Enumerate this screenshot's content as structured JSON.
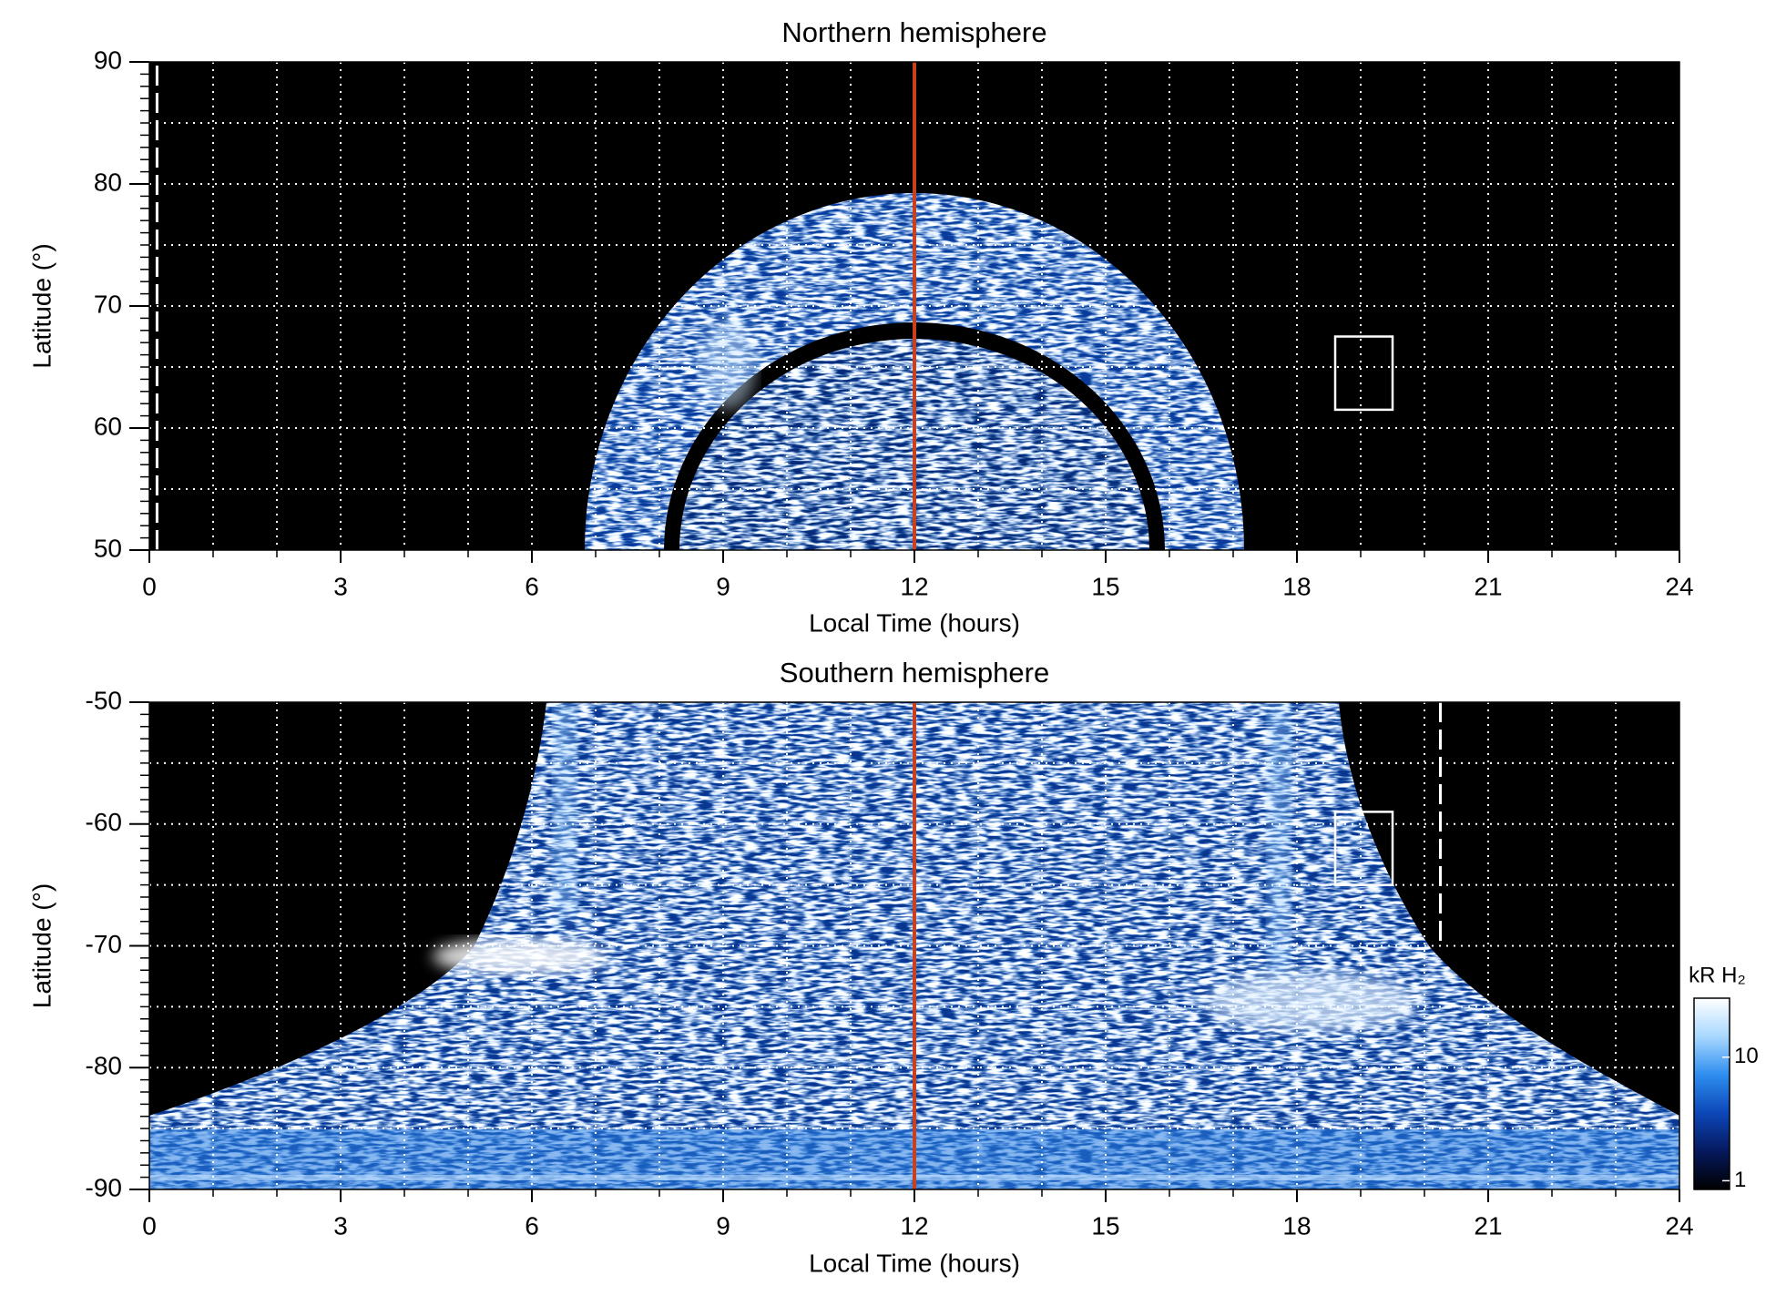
{
  "chart_data": [
    {
      "type": "image",
      "title": "Northern hemisphere",
      "x_label": "Local Time (hours)",
      "y_label": "Latitude (°)",
      "xlim": [
        0,
        24
      ],
      "ylim": [
        50,
        90
      ],
      "xticks": [
        0,
        3,
        6,
        9,
        12,
        15,
        18,
        21,
        24
      ],
      "yticks": [
        50,
        60,
        70,
        80,
        90
      ],
      "xminorticks": [
        0,
        1,
        2,
        3,
        4,
        5,
        6,
        7,
        8,
        9,
        10,
        11,
        12,
        13,
        14,
        15,
        16,
        17,
        18,
        19,
        20,
        21,
        22,
        23,
        24
      ],
      "yminorticks": [
        50,
        51,
        52,
        53,
        54,
        55,
        56,
        57,
        58,
        59,
        60,
        61,
        62,
        63,
        64,
        65,
        66,
        67,
        68,
        69,
        70,
        71,
        72,
        73,
        74,
        75,
        76,
        77,
        78,
        79,
        80,
        81,
        82,
        83,
        84,
        85,
        86,
        87,
        88,
        89,
        90
      ],
      "grid": true,
      "grid_x": [
        1,
        2,
        3,
        4,
        5,
        6,
        7,
        8,
        9,
        10,
        11,
        12,
        13,
        14,
        15,
        16,
        17,
        18,
        19,
        20,
        21,
        22,
        23
      ],
      "grid_y": [
        55,
        60,
        65,
        70,
        75,
        80,
        85
      ],
      "marker_line": {
        "x": 12,
        "color": "#c8401e"
      },
      "box": {
        "x": [
          18.6,
          19.5
        ],
        "y": [
          61.5,
          67.5
        ]
      },
      "dashed_line": {
        "x": 0.12,
        "y": [
          50,
          90
        ]
      }
    },
    {
      "type": "image",
      "title": "Southern hemisphere",
      "x_label": "Local Time (hours)",
      "y_label": "Latitude (°)",
      "xlim": [
        0,
        24
      ],
      "ylim": [
        -90,
        -50
      ],
      "xticks": [
        0,
        3,
        6,
        9,
        12,
        15,
        18,
        21,
        24
      ],
      "yticks": [
        -90,
        -80,
        -70,
        -60,
        -50
      ],
      "xminorticks": [
        0,
        1,
        2,
        3,
        4,
        5,
        6,
        7,
        8,
        9,
        10,
        11,
        12,
        13,
        14,
        15,
        16,
        17,
        18,
        19,
        20,
        21,
        22,
        23,
        24
      ],
      "yminorticks": [
        -90,
        -89,
        -88,
        -87,
        -86,
        -85,
        -84,
        -83,
        -82,
        -81,
        -80,
        -79,
        -78,
        -77,
        -76,
        -75,
        -74,
        -73,
        -72,
        -71,
        -70,
        -69,
        -68,
        -67,
        -66,
        -65,
        -64,
        -63,
        -62,
        -61,
        -60,
        -59,
        -58,
        -57,
        -56,
        -55,
        -54,
        -53,
        -52,
        -51,
        -50
      ],
      "grid": true,
      "grid_x": [
        1,
        2,
        3,
        4,
        5,
        6,
        7,
        8,
        9,
        10,
        11,
        12,
        13,
        14,
        15,
        16,
        17,
        18,
        19,
        20,
        21,
        22,
        23
      ],
      "grid_y": [
        -85,
        -80,
        -75,
        -70,
        -65,
        -60,
        -55
      ],
      "marker_line": {
        "x": 12,
        "color": "#c8401e"
      },
      "box": {
        "x": [
          18.6,
          19.5
        ],
        "y": [
          -59,
          -65
        ]
      },
      "dashed_line": {
        "x": 20.25,
        "y": [
          -50,
          -70
        ]
      }
    },
    {
      "type": "colorbar",
      "label": "kR H₂",
      "log_scale": true,
      "clim": [
        0.85,
        30
      ],
      "ticks": [
        1,
        10
      ],
      "colors": [
        "#000000",
        "#06195e",
        "#0c47b8",
        "#2f8ef0",
        "#a8d8ff",
        "#ffffff"
      ]
    }
  ]
}
